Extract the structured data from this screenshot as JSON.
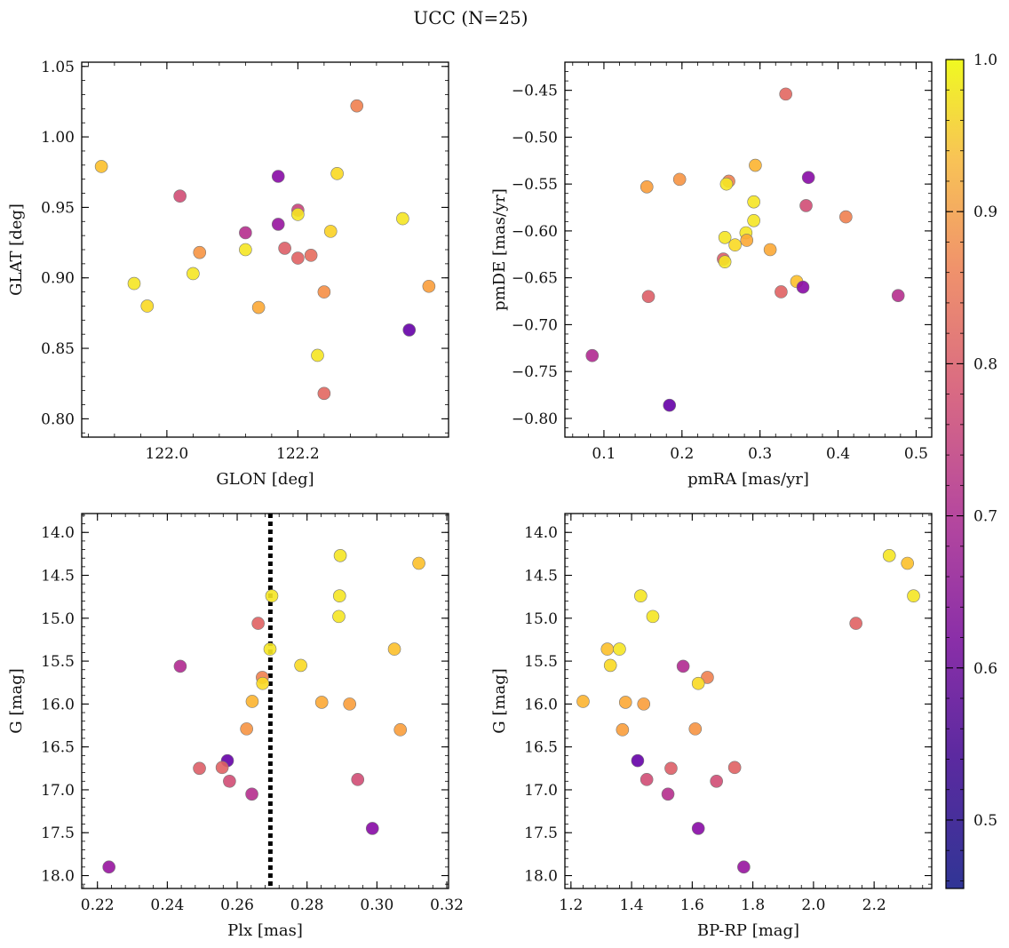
{
  "title": "UCC (N=25)",
  "colormap": {
    "name": "plasma",
    "range": [
      0.455,
      1.0
    ],
    "ticks": [
      0.5,
      0.6,
      0.7,
      0.8,
      0.9,
      1.0
    ],
    "tick_labels": [
      "0.5",
      "0.6",
      "0.7",
      "0.8",
      "0.9",
      "1.0"
    ]
  },
  "probabilities": [
    0.79,
    0.75,
    0.82,
    0.66,
    0.95,
    0.97,
    0.89,
    0.68,
    0.62,
    0.74,
    0.97,
    0.46,
    0.94,
    0.87,
    0.61,
    0.52,
    0.73,
    0.72,
    0.97,
    0.83,
    0.55,
    0.85,
    0.91,
    0.95,
    0.97
  ],
  "chart_data": [
    {
      "type": "scatter",
      "xlabel": "GLON [deg]",
      "ylabel": "GLAT [deg]",
      "xlim": [
        121.87,
        122.43
      ],
      "ylim": [
        0.787,
        1.053
      ],
      "xticks": [
        122.0,
        122.2
      ],
      "xtick_labels": [
        "122.0",
        "122.2"
      ],
      "yticks": [
        0.8,
        0.85,
        0.9,
        0.95,
        1.0,
        1.05
      ],
      "ytick_labels": [
        "0.80",
        "0.85",
        "0.90",
        "0.95",
        "1.00",
        "1.05"
      ],
      "points": [
        {
          "x": 122.29,
          "y": 1.022,
          "c": 0.79
        },
        {
          "x": 121.9,
          "y": 0.979,
          "c": 0.91
        },
        {
          "x": 122.26,
          "y": 0.974,
          "c": 0.95
        },
        {
          "x": 122.17,
          "y": 0.972,
          "c": 0.52
        },
        {
          "x": 122.02,
          "y": 0.958,
          "c": 0.68
        },
        {
          "x": 122.2,
          "y": 0.948,
          "c": 0.66
        },
        {
          "x": 122.2,
          "y": 0.945,
          "c": 0.97
        },
        {
          "x": 122.36,
          "y": 0.942,
          "c": 0.97
        },
        {
          "x": 122.17,
          "y": 0.938,
          "c": 0.55
        },
        {
          "x": 122.12,
          "y": 0.932,
          "c": 0.61
        },
        {
          "x": 122.25,
          "y": 0.933,
          "c": 0.94
        },
        {
          "x": 122.18,
          "y": 0.921,
          "c": 0.72
        },
        {
          "x": 122.12,
          "y": 0.92,
          "c": 0.97
        },
        {
          "x": 122.05,
          "y": 0.918,
          "c": 0.83
        },
        {
          "x": 122.22,
          "y": 0.916,
          "c": 0.75
        },
        {
          "x": 122.2,
          "y": 0.914,
          "c": 0.73
        },
        {
          "x": 122.04,
          "y": 0.903,
          "c": 0.97
        },
        {
          "x": 121.95,
          "y": 0.896,
          "c": 0.97
        },
        {
          "x": 122.4,
          "y": 0.894,
          "c": 0.85
        },
        {
          "x": 122.24,
          "y": 0.89,
          "c": 0.82
        },
        {
          "x": 121.97,
          "y": 0.88,
          "c": 0.95
        },
        {
          "x": 122.14,
          "y": 0.879,
          "c": 0.87
        },
        {
          "x": 122.37,
          "y": 0.863,
          "c": 0.46
        },
        {
          "x": 122.23,
          "y": 0.845,
          "c": 0.97
        },
        {
          "x": 122.24,
          "y": 0.818,
          "c": 0.74
        }
      ]
    },
    {
      "type": "scatter",
      "xlabel": "pmRA [mas/yr]",
      "ylabel": "pmDE [mas/yr]",
      "xlim": [
        0.05,
        0.52
      ],
      "ylim": [
        -0.82,
        -0.42
      ],
      "xticks": [
        0.1,
        0.2,
        0.3,
        0.4,
        0.5
      ],
      "xtick_labels": [
        "0.1",
        "0.2",
        "0.3",
        "0.4",
        "0.5"
      ],
      "yticks": [
        -0.8,
        -0.75,
        -0.7,
        -0.65,
        -0.6,
        -0.55,
        -0.5,
        -0.45
      ],
      "ytick_labels": [
        "−0.80",
        "−0.75",
        "−0.70",
        "−0.65",
        "−0.60",
        "−0.55",
        "−0.50",
        "−0.45"
      ],
      "points": [
        {
          "x": 0.333,
          "y": -0.454,
          "c": 0.74
        },
        {
          "x": 0.362,
          "y": -0.543,
          "c": 0.52
        },
        {
          "x": 0.294,
          "y": -0.53,
          "c": 0.89
        },
        {
          "x": 0.197,
          "y": -0.545,
          "c": 0.83
        },
        {
          "x": 0.155,
          "y": -0.553,
          "c": 0.85
        },
        {
          "x": 0.26,
          "y": -0.547,
          "c": 0.79
        },
        {
          "x": 0.257,
          "y": -0.55,
          "c": 0.97
        },
        {
          "x": 0.292,
          "y": -0.569,
          "c": 0.97
        },
        {
          "x": 0.359,
          "y": -0.573,
          "c": 0.68
        },
        {
          "x": 0.41,
          "y": -0.585,
          "c": 0.79
        },
        {
          "x": 0.292,
          "y": -0.589,
          "c": 0.97
        },
        {
          "x": 0.282,
          "y": -0.602,
          "c": 0.97
        },
        {
          "x": 0.255,
          "y": -0.607,
          "c": 0.97
        },
        {
          "x": 0.283,
          "y": -0.61,
          "c": 0.87
        },
        {
          "x": 0.268,
          "y": -0.615,
          "c": 0.95
        },
        {
          "x": 0.313,
          "y": -0.62,
          "c": 0.87
        },
        {
          "x": 0.253,
          "y": -0.63,
          "c": 0.72
        },
        {
          "x": 0.255,
          "y": -0.633,
          "c": 0.97
        },
        {
          "x": 0.347,
          "y": -0.654,
          "c": 0.91
        },
        {
          "x": 0.355,
          "y": -0.66,
          "c": 0.52
        },
        {
          "x": 0.327,
          "y": -0.665,
          "c": 0.73
        },
        {
          "x": 0.157,
          "y": -0.67,
          "c": 0.72
        },
        {
          "x": 0.477,
          "y": -0.669,
          "c": 0.61
        },
        {
          "x": 0.085,
          "y": -0.733,
          "c": 0.6
        },
        {
          "x": 0.184,
          "y": -0.786,
          "c": 0.46
        }
      ]
    },
    {
      "type": "scatter",
      "xlabel": "Plx [mas]",
      "ylabel": "G [mag]",
      "xlim": [
        0.2155,
        0.3205
      ],
      "ylim": [
        18.15,
        13.78
      ],
      "y_inverted": true,
      "vline": 0.2695,
      "xticks": [
        0.22,
        0.24,
        0.26,
        0.28,
        0.3,
        0.32
      ],
      "xtick_labels": [
        "0.22",
        "0.24",
        "0.26",
        "0.28",
        "0.30",
        "0.32"
      ],
      "yticks": [
        14.0,
        14.5,
        15.0,
        15.5,
        16.0,
        16.5,
        17.0,
        17.5,
        18.0
      ],
      "ytick_labels": [
        "14.0",
        "14.5",
        "15.0",
        "15.5",
        "16.0",
        "16.5",
        "17.0",
        "17.5",
        "18.0"
      ],
      "points": [
        {
          "x": 0.2895,
          "y": 14.27,
          "c": 0.97
        },
        {
          "x": 0.312,
          "y": 14.36,
          "c": 0.91
        },
        {
          "x": 0.2699,
          "y": 14.74,
          "c": 0.97
        },
        {
          "x": 0.2893,
          "y": 14.74,
          "c": 0.97
        },
        {
          "x": 0.2891,
          "y": 14.98,
          "c": 0.97
        },
        {
          "x": 0.266,
          "y": 15.06,
          "c": 0.73
        },
        {
          "x": 0.305,
          "y": 15.36,
          "c": 0.91
        },
        {
          "x": 0.2694,
          "y": 15.36,
          "c": 0.97
        },
        {
          "x": 0.2437,
          "y": 15.56,
          "c": 0.6
        },
        {
          "x": 0.2782,
          "y": 15.55,
          "c": 0.95
        },
        {
          "x": 0.2672,
          "y": 15.69,
          "c": 0.79
        },
        {
          "x": 0.2673,
          "y": 15.76,
          "c": 0.95
        },
        {
          "x": 0.2643,
          "y": 15.97,
          "c": 0.89
        },
        {
          "x": 0.2842,
          "y": 15.98,
          "c": 0.87
        },
        {
          "x": 0.2922,
          "y": 16.0,
          "c": 0.85
        },
        {
          "x": 0.2627,
          "y": 16.29,
          "c": 0.83
        },
        {
          "x": 0.3067,
          "y": 16.3,
          "c": 0.85
        },
        {
          "x": 0.2572,
          "y": 16.66,
          "c": 0.46
        },
        {
          "x": 0.2492,
          "y": 16.75,
          "c": 0.72
        },
        {
          "x": 0.2557,
          "y": 16.74,
          "c": 0.73
        },
        {
          "x": 0.2945,
          "y": 16.88,
          "c": 0.68
        },
        {
          "x": 0.2578,
          "y": 16.9,
          "c": 0.68
        },
        {
          "x": 0.2642,
          "y": 17.05,
          "c": 0.61
        },
        {
          "x": 0.2987,
          "y": 17.45,
          "c": 0.52
        },
        {
          "x": 0.2233,
          "y": 17.9,
          "c": 0.55
        }
      ]
    },
    {
      "type": "scatter",
      "xlabel": "BP-RP [mag]",
      "ylabel": "G [mag]",
      "xlim": [
        1.18,
        2.39
      ],
      "ylim": [
        18.15,
        13.78
      ],
      "y_inverted": true,
      "xticks": [
        1.2,
        1.4,
        1.6,
        1.8,
        2.0,
        2.2
      ],
      "xtick_labels": [
        "1.2",
        "1.4",
        "1.6",
        "1.8",
        "2.0",
        "2.2"
      ],
      "yticks": [
        14.0,
        14.5,
        15.0,
        15.5,
        16.0,
        16.5,
        17.0,
        17.5,
        18.0
      ],
      "ytick_labels": [
        "14.0",
        "14.5",
        "15.0",
        "15.5",
        "16.0",
        "16.5",
        "17.0",
        "17.5",
        "18.0"
      ],
      "points": [
        {
          "x": 2.25,
          "y": 14.27,
          "c": 0.97
        },
        {
          "x": 2.31,
          "y": 14.36,
          "c": 0.91
        },
        {
          "x": 2.33,
          "y": 14.74,
          "c": 0.97
        },
        {
          "x": 1.43,
          "y": 14.74,
          "c": 0.97
        },
        {
          "x": 1.47,
          "y": 14.98,
          "c": 0.97
        },
        {
          "x": 2.14,
          "y": 15.06,
          "c": 0.73
        },
        {
          "x": 1.32,
          "y": 15.36,
          "c": 0.91
        },
        {
          "x": 1.36,
          "y": 15.36,
          "c": 0.97
        },
        {
          "x": 1.33,
          "y": 15.55,
          "c": 0.95
        },
        {
          "x": 1.57,
          "y": 15.56,
          "c": 0.6
        },
        {
          "x": 1.65,
          "y": 15.69,
          "c": 0.79
        },
        {
          "x": 1.62,
          "y": 15.76,
          "c": 0.95
        },
        {
          "x": 1.24,
          "y": 15.97,
          "c": 0.89
        },
        {
          "x": 1.38,
          "y": 15.98,
          "c": 0.87
        },
        {
          "x": 1.44,
          "y": 16.0,
          "c": 0.85
        },
        {
          "x": 1.37,
          "y": 16.3,
          "c": 0.85
        },
        {
          "x": 1.61,
          "y": 16.29,
          "c": 0.83
        },
        {
          "x": 1.42,
          "y": 16.66,
          "c": 0.46
        },
        {
          "x": 1.53,
          "y": 16.75,
          "c": 0.72
        },
        {
          "x": 1.74,
          "y": 16.74,
          "c": 0.73
        },
        {
          "x": 1.45,
          "y": 16.88,
          "c": 0.68
        },
        {
          "x": 1.68,
          "y": 16.9,
          "c": 0.68
        },
        {
          "x": 1.52,
          "y": 17.05,
          "c": 0.61
        },
        {
          "x": 1.62,
          "y": 17.45,
          "c": 0.52
        },
        {
          "x": 1.77,
          "y": 17.9,
          "c": 0.55
        }
      ]
    }
  ]
}
